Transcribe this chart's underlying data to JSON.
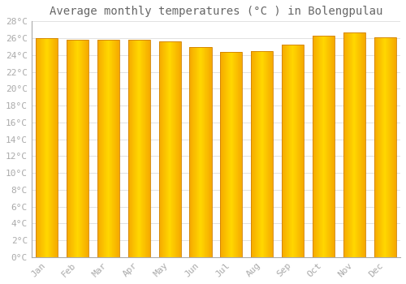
{
  "title": "Average monthly temperatures (°C ) in Bolengpulau",
  "months": [
    "Jan",
    "Feb",
    "Mar",
    "Apr",
    "May",
    "Jun",
    "Jul",
    "Aug",
    "Sep",
    "Oct",
    "Nov",
    "Dec"
  ],
  "values": [
    26.0,
    25.8,
    25.8,
    25.8,
    25.6,
    24.9,
    24.4,
    24.5,
    25.2,
    26.3,
    26.7,
    26.1
  ],
  "bar_color_center": "#FFD700",
  "bar_color_edge": "#F5A800",
  "bar_edge_color": "#D08000",
  "background_color": "#FFFFFF",
  "grid_color": "#DDDDDD",
  "ylim": [
    0,
    28
  ],
  "ytick_step": 2,
  "title_fontsize": 10,
  "tick_fontsize": 8,
  "title_color": "#666666",
  "font_color": "#AAAAAA",
  "bar_width": 0.72
}
